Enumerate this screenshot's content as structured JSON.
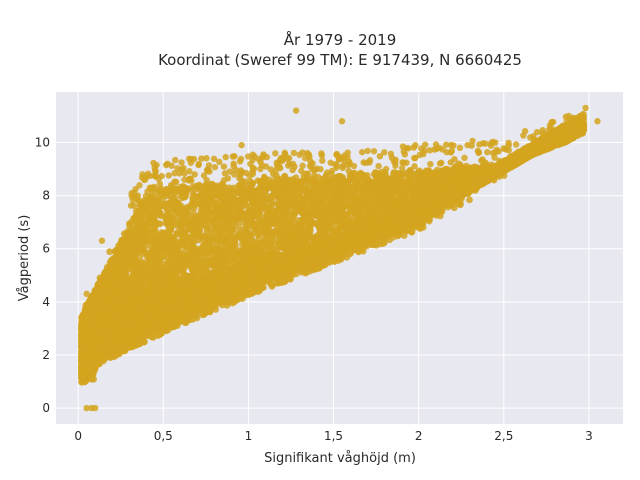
{
  "chart_data": {
    "type": "scatter",
    "title_line1": "År 1979 - 2019",
    "title_line2": "Koordinat (Sweref 99 TM): E 917439, N 6660425",
    "xlabel": "Signifikant våghöjd (m)",
    "ylabel": "Vågperiod (s)",
    "xlim": [
      -0.13,
      3.2
    ],
    "ylim": [
      -0.6,
      11.9
    ],
    "x_ticks": [
      0,
      0.5,
      1,
      1.5,
      2,
      2.5,
      3
    ],
    "x_tick_labels": [
      "0",
      "0,5",
      "1",
      "1,5",
      "2",
      "2,5",
      "3"
    ],
    "y_ticks": [
      0,
      2,
      4,
      6,
      8,
      10
    ],
    "y_tick_labels": [
      "0",
      "2",
      "4",
      "6",
      "8",
      "10"
    ],
    "grid": true,
    "marker_color": "#D4A520",
    "plot_background": "#E8E9F0",
    "points_outline": {
      "upper": [
        [
          0.02,
          3.2
        ],
        [
          0.06,
          4.4
        ],
        [
          0.08,
          5.0
        ],
        [
          0.12,
          5.8
        ],
        [
          0.18,
          6.4
        ],
        [
          0.25,
          7.2
        ],
        [
          0.32,
          7.8
        ],
        [
          0.4,
          8.3
        ],
        [
          0.5,
          8.6
        ],
        [
          0.7,
          8.7
        ],
        [
          1.0,
          8.9
        ],
        [
          1.3,
          9.0
        ],
        [
          1.6,
          9.1
        ],
        [
          1.9,
          9.2
        ],
        [
          2.2,
          9.3
        ],
        [
          2.5,
          9.5
        ],
        [
          2.7,
          9.8
        ],
        [
          2.85,
          10.2
        ],
        [
          2.95,
          10.4
        ]
      ],
      "lower": [
        [
          0.95,
          9.2
        ],
        [
          0.02,
          1.4
        ],
        [
          0.06,
          1.2
        ],
        [
          0.1,
          1.4
        ],
        [
          0.2,
          1.9
        ],
        [
          0.3,
          2.3
        ],
        [
          0.5,
          3.0
        ],
        [
          0.8,
          3.7
        ],
        [
          1.0,
          4.0
        ],
        [
          1.3,
          4.5
        ],
        [
          1.6,
          5.2
        ],
        [
          1.9,
          5.8
        ],
        [
          2.2,
          6.5
        ],
        [
          2.5,
          7.2
        ],
        [
          2.7,
          7.6
        ],
        [
          2.85,
          8.2
        ],
        [
          2.95,
          9.0
        ]
      ]
    },
    "core_density_samples": 12000,
    "outlier_points": [
      {
        "x": 0.05,
        "y": 0
      },
      {
        "x": 0.08,
        "y": 0
      },
      {
        "x": 0.1,
        "y": 0
      },
      {
        "x": 1.28,
        "y": 11.2
      },
      {
        "x": 2.98,
        "y": 11.3
      },
      {
        "x": 3.05,
        "y": 10.8
      },
      {
        "x": 2.9,
        "y": 10.9
      },
      {
        "x": 0.96,
        "y": 9.9
      },
      {
        "x": 1.55,
        "y": 10.8
      },
      {
        "x": 0.05,
        "y": 4.3
      },
      {
        "x": 0.02,
        "y": 3.0
      },
      {
        "x": 0.14,
        "y": 6.3
      }
    ]
  }
}
